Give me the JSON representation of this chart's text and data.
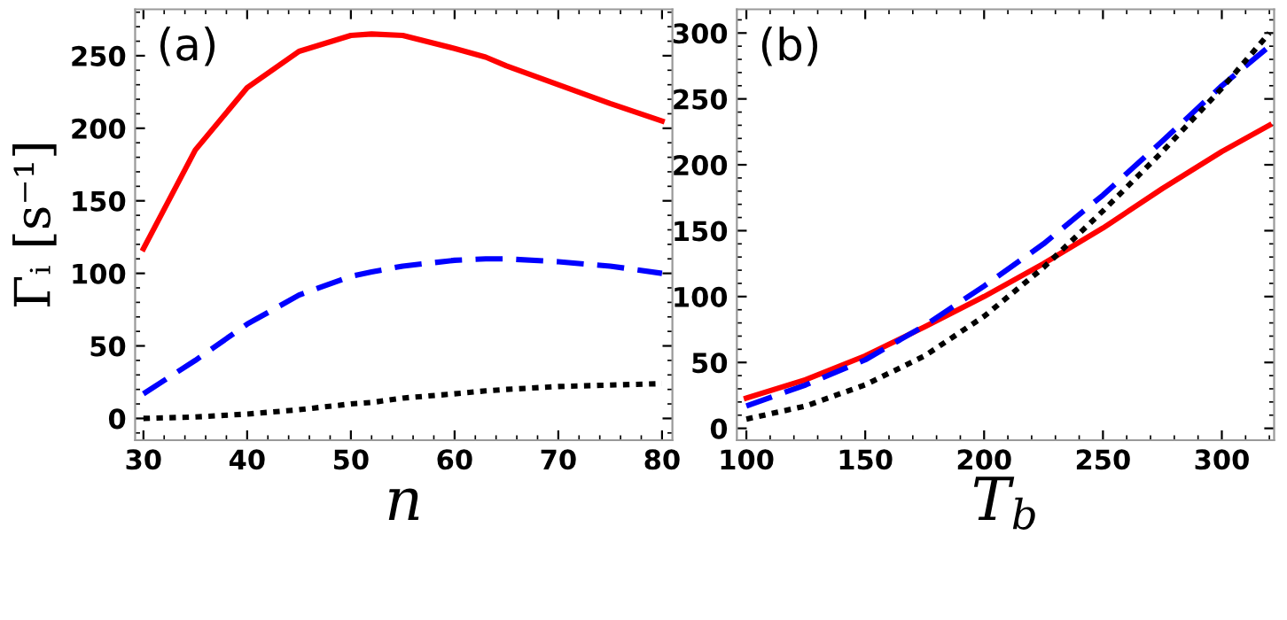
{
  "chart_data": [
    {
      "type": "line",
      "xlabel": "n",
      "ylabel": "Γᵢ [s⁻¹]",
      "annotations": [
        "(a)"
      ],
      "xlim": [
        29.2,
        81
      ],
      "ylim": [
        -15,
        282
      ],
      "xticks": [
        30,
        40,
        50,
        60,
        70,
        80
      ],
      "yticks": [
        0,
        50,
        100,
        150,
        200,
        250
      ],
      "grid": false,
      "legend": false,
      "x": [
        30,
        35,
        40,
        45,
        50,
        52,
        55,
        60,
        63,
        65,
        70,
        75,
        80
      ],
      "series": [
        {
          "color": "#ff0000",
          "line_style": "solid",
          "values": [
            117,
            185,
            228,
            253,
            264,
            265,
            264,
            255,
            249,
            243,
            230,
            217,
            205
          ]
        },
        {
          "color": "#0000ff",
          "line_style": "dashed",
          "values": [
            17,
            40,
            65,
            85,
            98,
            101,
            105,
            109,
            110,
            110,
            108,
            105,
            100
          ]
        },
        {
          "color": "#000000",
          "line_style": "dotted",
          "values": [
            0,
            1,
            3,
            6,
            10,
            11,
            14,
            17,
            19,
            20,
            22,
            23,
            24
          ]
        }
      ]
    },
    {
      "type": "line",
      "xlabel": "T$_{b}$",
      "annotations": [
        "(b)"
      ],
      "xlim": [
        96,
        322
      ],
      "ylim": [
        -9,
        318
      ],
      "xticks": [
        100,
        150,
        200,
        250,
        300
      ],
      "yticks": [
        0,
        50,
        100,
        150,
        200,
        250,
        300
      ],
      "grid": false,
      "legend": false,
      "x": [
        100,
        125,
        150,
        175,
        200,
        225,
        250,
        275,
        300,
        320
      ],
      "series": [
        {
          "color": "#ff0000",
          "line_style": "solid",
          "values": [
            23,
            37,
            55,
            77,
            100,
            125,
            152,
            182,
            210,
            230
          ]
        },
        {
          "color": "#0000ff",
          "line_style": "dashed",
          "values": [
            17,
            33,
            52,
            78,
            108,
            140,
            177,
            218,
            260,
            290
          ]
        },
        {
          "color": "#000000",
          "line_style": "dotted",
          "values": [
            7,
            17,
            33,
            55,
            85,
            122,
            165,
            210,
            258,
            300
          ]
        }
      ]
    }
  ]
}
